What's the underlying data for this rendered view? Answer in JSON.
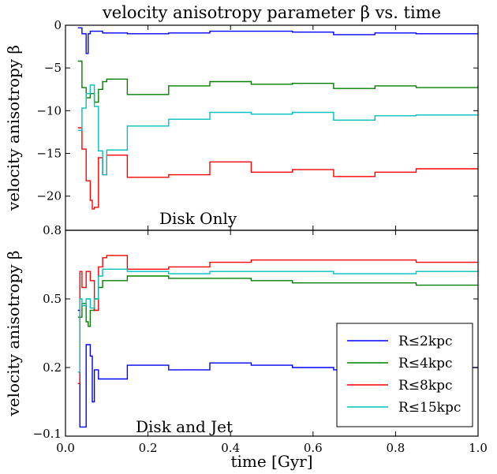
{
  "chart_data": [
    {
      "type": "line",
      "step": true,
      "title": "velocity anisotropy parameter β vs. time",
      "ylabel": "velocity anisotropy β",
      "annotation": "Disk Only",
      "xlim": [
        0.0,
        1.0
      ],
      "ylim": [
        -24,
        0
      ],
      "yticks": [
        "0",
        "−5",
        "−10",
        "−15",
        "−20"
      ],
      "ytick_values": [
        0,
        -5,
        -10,
        -15,
        -20
      ],
      "series": [
        {
          "name": "R≤2kpc",
          "color": "#0000ff",
          "x": [
            0.03,
            0.04,
            0.05,
            0.055,
            0.06,
            0.07,
            0.09,
            0.15,
            0.25,
            0.35,
            0.45,
            0.55,
            0.65,
            0.75,
            0.85,
            1.0
          ],
          "y": [
            -0.3,
            -1.0,
            -3.3,
            -1.0,
            -0.7,
            -0.7,
            -0.9,
            -1.0,
            -0.9,
            -0.7,
            -0.7,
            -0.8,
            -1.1,
            -0.9,
            -1.0,
            -0.9
          ]
        },
        {
          "name": "R≤4kpc",
          "color": "#008000",
          "x": [
            0.03,
            0.04,
            0.05,
            0.06,
            0.07,
            0.08,
            0.09,
            0.1,
            0.15,
            0.25,
            0.35,
            0.45,
            0.55,
            0.65,
            0.75,
            0.85,
            1.0
          ],
          "y": [
            -4.2,
            -7.3,
            -8.5,
            -8.0,
            -9.0,
            -7.5,
            -6.6,
            -6.3,
            -8.1,
            -7.1,
            -6.6,
            -6.9,
            -6.8,
            -7.4,
            -7.1,
            -7.3,
            -7.0
          ]
        },
        {
          "name": "R≤8kpc",
          "color": "#ff0000",
          "x": [
            0.03,
            0.04,
            0.05,
            0.06,
            0.065,
            0.07,
            0.08,
            0.09,
            0.1,
            0.15,
            0.25,
            0.35,
            0.45,
            0.55,
            0.65,
            0.75,
            0.85,
            1.0
          ],
          "y": [
            -12.0,
            -14.5,
            -18.2,
            -20.5,
            -21.5,
            -21.3,
            -15.5,
            -17.5,
            -15.2,
            -17.8,
            -17.5,
            -16.0,
            -17.2,
            -16.9,
            -17.7,
            -17.2,
            -16.8,
            -16.7
          ]
        },
        {
          "name": "R≤15kpc",
          "color": "#00bfbf",
          "x": [
            0.03,
            0.04,
            0.05,
            0.06,
            0.07,
            0.08,
            0.09,
            0.1,
            0.15,
            0.25,
            0.35,
            0.45,
            0.55,
            0.65,
            0.75,
            0.85,
            1.0
          ],
          "y": [
            -12.3,
            -9.7,
            -8.0,
            -7.0,
            -9.5,
            -14.7,
            -17.5,
            -14.6,
            -11.8,
            -11.0,
            -10.2,
            -10.4,
            -10.2,
            -11.1,
            -10.6,
            -10.5,
            -10.5
          ]
        }
      ]
    },
    {
      "type": "line",
      "step": true,
      "ylabel": "velocity anisotropy β",
      "xlabel": "time [Gyr]",
      "annotation": "Disk and Jet",
      "xlim": [
        0.0,
        1.0
      ],
      "ylim": [
        -0.1,
        0.8
      ],
      "yticks": [
        "0.8",
        "0.5",
        "0.2",
        "−0.1"
      ],
      "ytick_values": [
        0.8,
        0.5,
        0.2,
        -0.1
      ],
      "xticks": [
        "0.0",
        "0.2",
        "0.4",
        "0.6",
        "0.8",
        "1.0"
      ],
      "xtick_values": [
        0.0,
        0.2,
        0.4,
        0.6,
        0.8,
        1.0
      ],
      "legend_position": "lower-right",
      "series": [
        {
          "name": "R≤2kpc",
          "color": "#0000ff",
          "x": [
            0.03,
            0.035,
            0.045,
            0.05,
            0.06,
            0.065,
            0.07,
            0.08,
            0.1,
            0.15,
            0.25,
            0.35,
            0.45,
            0.55,
            0.65,
            0.75,
            0.85,
            1.0
          ],
          "y": [
            0.45,
            -0.06,
            -0.06,
            0.3,
            0.25,
            0.05,
            0.19,
            0.15,
            0.15,
            0.21,
            0.19,
            0.22,
            0.21,
            0.2,
            0.19,
            0.2,
            0.2,
            0.2
          ]
        },
        {
          "name": "R≤4kpc",
          "color": "#008000",
          "x": [
            0.03,
            0.04,
            0.05,
            0.055,
            0.06,
            0.07,
            0.08,
            0.09,
            0.1,
            0.15,
            0.25,
            0.35,
            0.45,
            0.55,
            0.65,
            0.75,
            0.85,
            1.0
          ],
          "y": [
            0.42,
            0.48,
            0.4,
            0.38,
            0.45,
            0.5,
            0.55,
            0.58,
            0.58,
            0.6,
            0.59,
            0.59,
            0.58,
            0.57,
            0.57,
            0.57,
            0.56,
            0.56
          ]
        },
        {
          "name": "R≤8kpc",
          "color": "#ff0000",
          "x": [
            0.03,
            0.035,
            0.04,
            0.05,
            0.06,
            0.07,
            0.08,
            0.09,
            0.1,
            0.15,
            0.25,
            0.35,
            0.45,
            0.55,
            0.65,
            0.75,
            0.85,
            1.0
          ],
          "y": [
            0.13,
            0.62,
            0.55,
            0.62,
            0.58,
            0.45,
            0.64,
            0.68,
            0.69,
            0.63,
            0.64,
            0.66,
            0.67,
            0.67,
            0.67,
            0.67,
            0.66,
            0.66
          ]
        },
        {
          "name": "R≤15kpc",
          "color": "#00bfbf",
          "x": [
            0.03,
            0.035,
            0.04,
            0.05,
            0.06,
            0.07,
            0.08,
            0.09,
            0.1,
            0.15,
            0.25,
            0.35,
            0.45,
            0.55,
            0.65,
            0.75,
            0.85,
            1.0
          ],
          "y": [
            0.18,
            0.5,
            0.47,
            0.5,
            0.46,
            0.5,
            0.6,
            0.63,
            0.63,
            0.62,
            0.61,
            0.62,
            0.62,
            0.62,
            0.61,
            0.61,
            0.62,
            0.62
          ]
        }
      ]
    }
  ]
}
